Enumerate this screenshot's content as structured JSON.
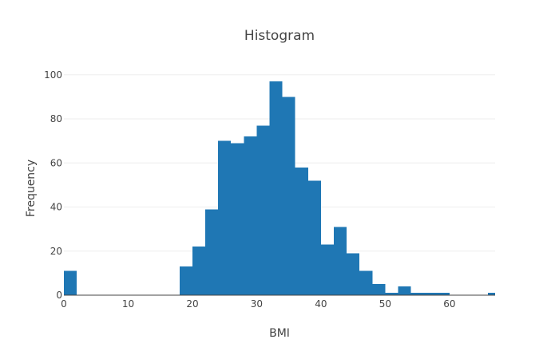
{
  "chart_data": {
    "type": "bar",
    "title": "Histogram",
    "xlabel": "BMI",
    "ylabel": "Frequency",
    "xlim": [
      0,
      67.1
    ],
    "ylim": [
      0,
      105
    ],
    "xticks": [
      0,
      10,
      20,
      30,
      40,
      50,
      60
    ],
    "yticks": [
      0,
      20,
      40,
      60,
      80,
      100
    ],
    "grid": true,
    "bar_color": "#1f77b4",
    "bins": [
      {
        "x0": 0,
        "x1": 2,
        "count": 11
      },
      {
        "x0": 18,
        "x1": 20,
        "count": 13
      },
      {
        "x0": 20,
        "x1": 22,
        "count": 22
      },
      {
        "x0": 22,
        "x1": 24,
        "count": 39
      },
      {
        "x0": 24,
        "x1": 26,
        "count": 70
      },
      {
        "x0": 26,
        "x1": 28,
        "count": 69
      },
      {
        "x0": 28,
        "x1": 30,
        "count": 72
      },
      {
        "x0": 30,
        "x1": 32,
        "count": 77
      },
      {
        "x0": 32,
        "x1": 34,
        "count": 97
      },
      {
        "x0": 34,
        "x1": 36,
        "count": 90
      },
      {
        "x0": 36,
        "x1": 38,
        "count": 58
      },
      {
        "x0": 38,
        "x1": 40,
        "count": 52
      },
      {
        "x0": 40,
        "x1": 42,
        "count": 23
      },
      {
        "x0": 42,
        "x1": 44,
        "count": 31
      },
      {
        "x0": 44,
        "x1": 46,
        "count": 19
      },
      {
        "x0": 46,
        "x1": 48,
        "count": 11
      },
      {
        "x0": 48,
        "x1": 50,
        "count": 5
      },
      {
        "x0": 50,
        "x1": 52,
        "count": 1
      },
      {
        "x0": 52,
        "x1": 54,
        "count": 4
      },
      {
        "x0": 54,
        "x1": 56,
        "count": 1
      },
      {
        "x0": 56,
        "x1": 58,
        "count": 1
      },
      {
        "x0": 58,
        "x1": 60,
        "count": 1
      },
      {
        "x0": 66,
        "x1": 68,
        "count": 1
      }
    ]
  }
}
